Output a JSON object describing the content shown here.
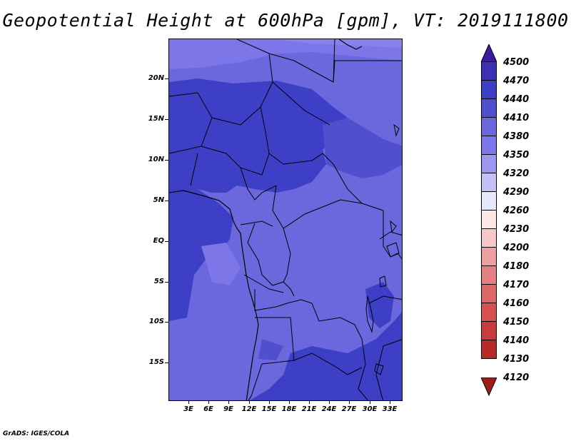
{
  "title": "Geopotential Height at 600hPa [gpm], VT: 2019111800",
  "credit": "GrADS: IGES/COLA",
  "lat_ticks": [
    "20N",
    "15N",
    "10N",
    "5N",
    "EQ",
    "5S",
    "10S",
    "15S"
  ],
  "lon_ticks": [
    "3E",
    "6E",
    "9E",
    "12E",
    "15E",
    "18E",
    "21E",
    "24E",
    "27E",
    "30E",
    "33E"
  ],
  "colorbar": {
    "labels": [
      "4500",
      "4470",
      "4440",
      "4410",
      "4380",
      "4350",
      "4320",
      "4290",
      "4260",
      "4230",
      "4200",
      "4180",
      "4170",
      "4160",
      "4150",
      "4140",
      "4130",
      "4120"
    ],
    "colors": [
      "#3a1a9e",
      "#3d30b4",
      "#3d3fc6",
      "#5050cf",
      "#6a68dc",
      "#7d76e8",
      "#9c96f0",
      "#c2c0f7",
      "#e8e8fb",
      "#fde6e6",
      "#f8c8c8",
      "#eea0a0",
      "#e68080",
      "#de6868",
      "#d65050",
      "#c83c3c",
      "#b82a2a",
      "#a01a1a"
    ]
  },
  "map": {
    "region": "Central Africa",
    "lat_range": [
      "19S",
      "25N"
    ],
    "lon_range": [
      "0E",
      "35E"
    ],
    "base_color": "#6a68dc",
    "high_color": "#3d3fc6",
    "north_color": "#7d76e8"
  }
}
